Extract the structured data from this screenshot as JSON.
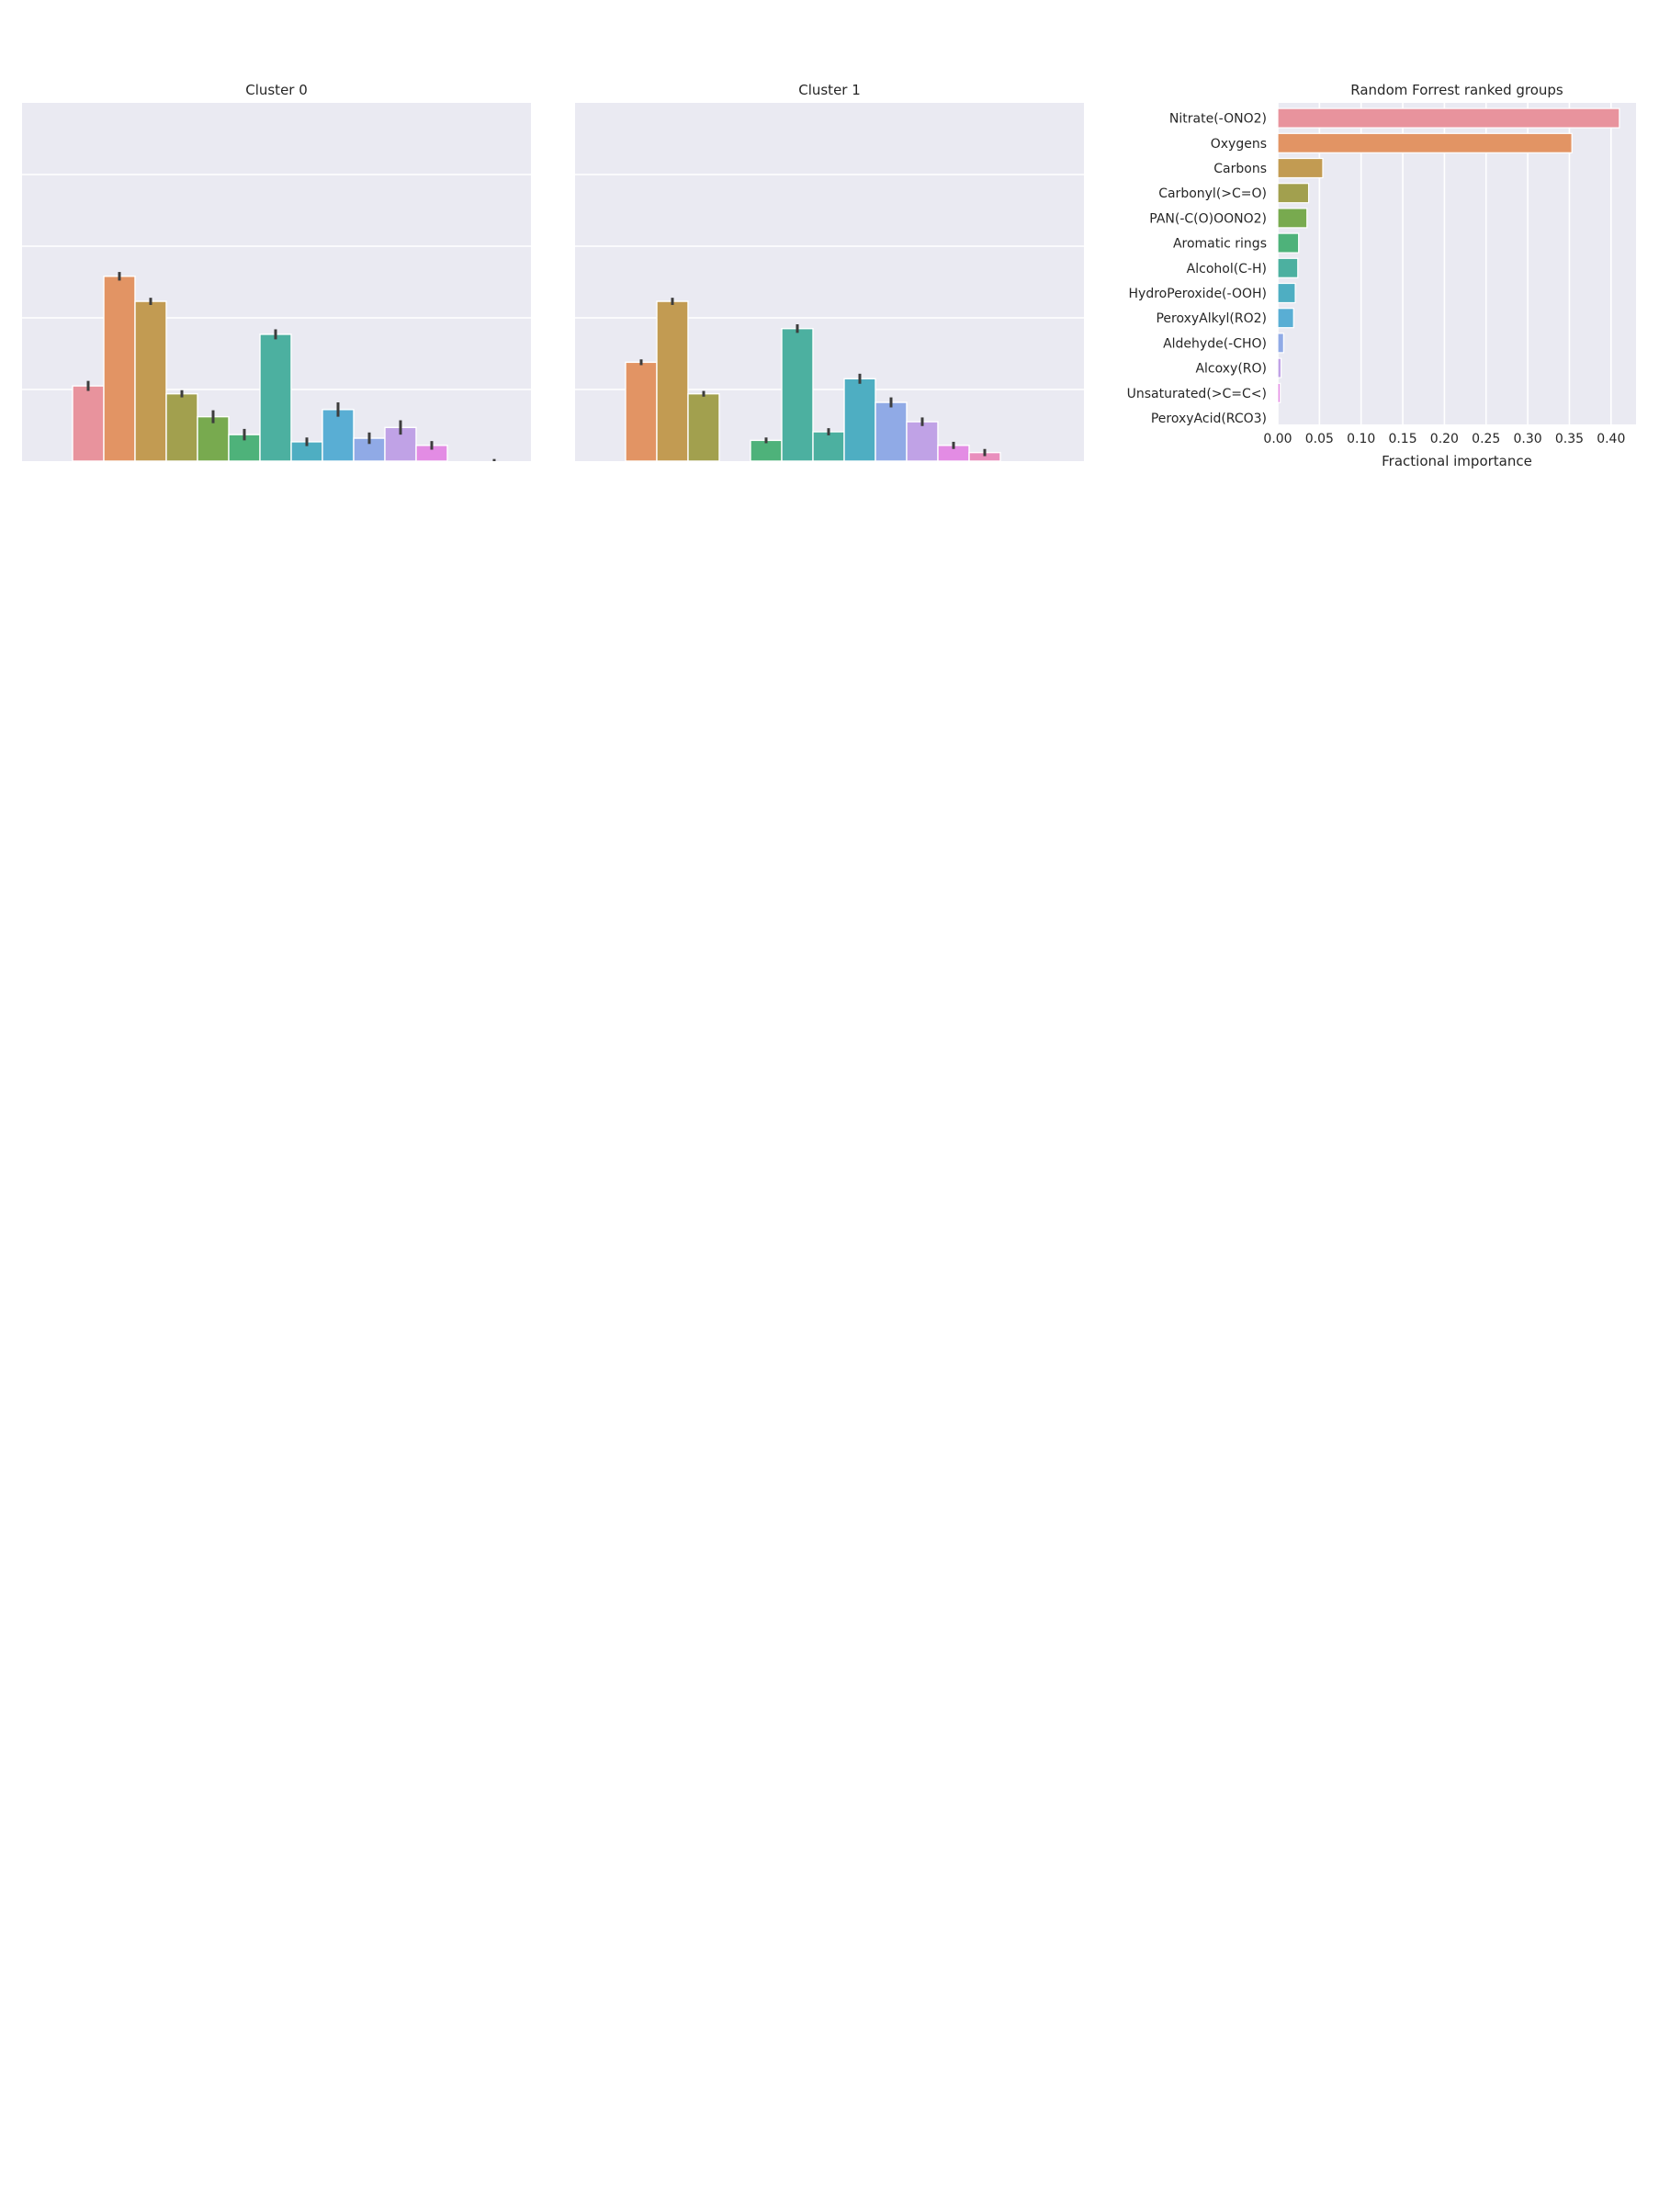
{
  "palette": [
    "#e8939d",
    "#e29464",
    "#c29b52",
    "#a2a04e",
    "#78aa4f",
    "#4eb27a",
    "#4cb0a0",
    "#4eaec2",
    "#59aed4",
    "#90aae6",
    "#c0a2e6",
    "#e38ce4",
    "#e98fbd"
  ],
  "chart_data": [
    {
      "type": "bar",
      "title": "Cluster 0",
      "xlabel": "",
      "ylabel": "",
      "ylim": [
        0,
        5
      ],
      "grid": true,
      "values": [
        1.05,
        2.58,
        2.23,
        0.94,
        0.62,
        0.37,
        1.77,
        0.27,
        0.72,
        0.32,
        0.47,
        0.22,
        0.0,
        0.0
      ],
      "errors": [
        0.07,
        0.06,
        0.05,
        0.05,
        0.09,
        0.08,
        0.07,
        0.06,
        0.1,
        0.08,
        0.1,
        0.06,
        0.0,
        0.03
      ],
      "colors": [
        "#e8939d",
        "#e29464",
        "#c29b52",
        "#a2a04e",
        "#78aa4f",
        "#4eb27a",
        "#4cb0a0",
        "#4eaec2",
        "#59aed4",
        "#90aae6",
        "#c0a2e6",
        "#e38ce4",
        "#e98fbd",
        "#e98fbd"
      ]
    },
    {
      "type": "bar",
      "title": "Cluster 1",
      "xlabel": "",
      "ylabel": "",
      "ylim": [
        0,
        5
      ],
      "grid": true,
      "values": [
        0.0,
        0.0,
        1.38,
        2.23,
        0.94,
        0.0,
        0.29,
        1.85,
        0.41,
        1.15,
        0.82,
        0.55,
        0.22,
        0.12
      ],
      "errors": [
        0.0,
        0.0,
        0.04,
        0.05,
        0.04,
        0.0,
        0.04,
        0.06,
        0.05,
        0.07,
        0.07,
        0.06,
        0.05,
        0.05
      ],
      "colors": [
        "#e8939d",
        "#e29464",
        "#e29464",
        "#c29b52",
        "#a2a04e",
        "#78aa4f",
        "#4eb27a",
        "#4cb0a0",
        "#4cb0a0",
        "#4eaec2",
        "#90aae6",
        "#c0a2e6",
        "#e38ce4",
        "#e98fbd"
      ]
    },
    {
      "type": "bar",
      "orientation": "horizontal",
      "title": "Random Forrest ranked groups",
      "xlabel": "Fractional importance",
      "ylabel": "",
      "xlim": [
        0.0,
        0.43
      ],
      "xticks": [
        0.0,
        0.05,
        0.1,
        0.15,
        0.2,
        0.25,
        0.3,
        0.35,
        0.4
      ],
      "xtick_labels": [
        "0.00",
        "0.05",
        "0.10",
        "0.15",
        "0.20",
        "0.25",
        "0.30",
        "0.35",
        "0.40"
      ],
      "grid": true,
      "categories": [
        "Nitrate(-ONO2)",
        "Oxygens",
        "Carbons",
        "Carbonyl(>C=O)",
        "PAN(-C(O)OONO2)",
        "Aromatic rings",
        "Alcohol(C-H)",
        "HydroPeroxide(-OOH)",
        "PeroxyAlkyl(RO2)",
        "Aldehyde(-CHO)",
        "Alcoxy(RO)",
        "Unsaturated(>C=C<)",
        "PeroxyAcid(RCO3)"
      ],
      "values": [
        0.41,
        0.353,
        0.054,
        0.037,
        0.035,
        0.025,
        0.024,
        0.021,
        0.019,
        0.007,
        0.004,
        0.003,
        0.0
      ]
    }
  ]
}
